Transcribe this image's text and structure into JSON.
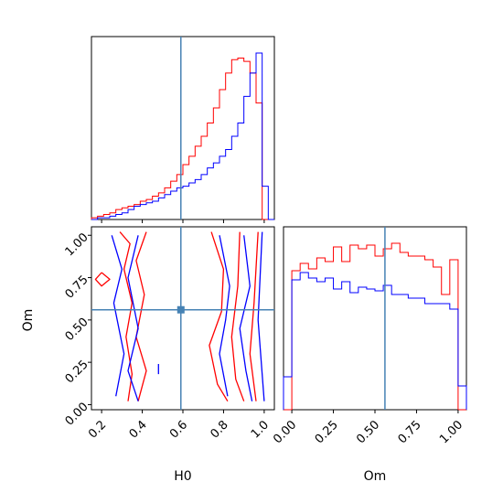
{
  "chart_data": {
    "type": "corner",
    "parameters": [
      "H0",
      "Om"
    ],
    "truth": {
      "H0": 0.59,
      "Om": 0.56,
      "color": "#4682b4"
    },
    "colors": {
      "series_red": "#ff0000",
      "series_blue": "#0000ff",
      "truth": "#4682b4"
    },
    "panels": [
      {
        "name": "H0-marginal",
        "type": "histogram",
        "xlim": [
          0.15,
          1.05
        ],
        "bin_edges": [
          0.15,
          0.18,
          0.21,
          0.24,
          0.27,
          0.3,
          0.33,
          0.36,
          0.39,
          0.42,
          0.45,
          0.48,
          0.51,
          0.54,
          0.57,
          0.6,
          0.63,
          0.66,
          0.69,
          0.72,
          0.75,
          0.78,
          0.81,
          0.84,
          0.87,
          0.9,
          0.93,
          0.96,
          0.99,
          1.02,
          1.05
        ],
        "series": [
          {
            "color": "red",
            "counts": [
              1,
              2,
              3,
              4,
              6,
              7,
              8,
              9,
              11,
              12,
              14,
              16,
              19,
              23,
              27,
              33,
              38,
              44,
              50,
              58,
              67,
              78,
              88,
              96,
              97,
              95,
              88,
              70,
              0,
              0
            ]
          },
          {
            "color": "blue",
            "counts": [
              0,
              1,
              1,
              2,
              3,
              4,
              6,
              8,
              9,
              10,
              11,
              13,
              15,
              17,
              19,
              20,
              22,
              24,
              27,
              31,
              34,
              38,
              42,
              50,
              58,
              74,
              88,
              100,
              20,
              0
            ]
          }
        ]
      },
      {
        "name": "Om-marginal",
        "type": "histogram",
        "xlim": [
          -0.05,
          1.05
        ],
        "xticks": [
          "0.00",
          "0.25",
          "0.50",
          "0.75",
          "1.00"
        ],
        "xlabel": "Om",
        "bin_edges": [
          -0.05,
          0.0,
          0.05,
          0.1,
          0.15,
          0.2,
          0.25,
          0.3,
          0.35,
          0.4,
          0.45,
          0.5,
          0.55,
          0.6,
          0.65,
          0.7,
          0.75,
          0.8,
          0.85,
          0.9,
          0.95,
          1.0,
          1.05
        ],
        "series": [
          {
            "color": "red",
            "counts": [
              0,
              0.76,
              0.8,
              0.77,
              0.83,
              0.81,
              0.89,
              0.81,
              0.9,
              0.88,
              0.9,
              0.84,
              0.88,
              0.91,
              0.86,
              0.84,
              0.84,
              0.82,
              0.78,
              0.63,
              0.82,
              0
            ]
          },
          {
            "color": "blue",
            "counts": [
              0.18,
              0.71,
              0.75,
              0.72,
              0.7,
              0.72,
              0.66,
              0.7,
              0.64,
              0.67,
              0.66,
              0.65,
              0.68,
              0.63,
              0.63,
              0.61,
              0.61,
              0.58,
              0.58,
              0.58,
              0.55,
              0.13
            ]
          }
        ]
      },
      {
        "name": "H0-Om-contour",
        "type": "contour",
        "xlim": [
          0.15,
          1.05
        ],
        "ylim": [
          -0.03,
          1.05
        ],
        "xticks": [
          "0.2",
          "0.4",
          "0.6",
          "0.8",
          "1.0"
        ],
        "yticks": [
          "0.00",
          "0.25",
          "0.50",
          "0.75",
          "1.00"
        ],
        "xlabel": "H0",
        "ylabel": "Om",
        "series": [
          {
            "color": "red",
            "contours": [
              [
                [
                  0.29,
                  1.02
                ],
                [
                  0.34,
                  0.95
                ],
                [
                  0.31,
                  0.8
                ],
                [
                  0.35,
                  0.6
                ],
                [
                  0.32,
                  0.4
                ],
                [
                  0.35,
                  0.18
                ],
                [
                  0.33,
                  0.02
                ]
              ],
              [
                [
                  0.42,
                  1.02
                ],
                [
                  0.37,
                  0.85
                ],
                [
                  0.41,
                  0.65
                ],
                [
                  0.37,
                  0.4
                ],
                [
                  0.42,
                  0.2
                ],
                [
                  0.38,
                  0.02
                ]
              ],
              [
                [
                  0.74,
                  1.02
                ],
                [
                  0.8,
                  0.8
                ],
                [
                  0.79,
                  0.55
                ],
                [
                  0.73,
                  0.35
                ],
                [
                  0.77,
                  0.12
                ],
                [
                  0.82,
                  0.02
                ]
              ],
              [
                [
                  0.88,
                  1.02
                ],
                [
                  0.87,
                  0.7
                ],
                [
                  0.84,
                  0.4
                ],
                [
                  0.86,
                  0.15
                ],
                [
                  0.9,
                  0.02
                ]
              ],
              [
                [
                  0.97,
                  1.02
                ],
                [
                  0.95,
                  0.6
                ],
                [
                  0.93,
                  0.3
                ],
                [
                  0.96,
                  0.02
                ]
              ],
              [
                [
                  0.2,
                  0.78
                ],
                [
                  0.24,
                  0.74
                ],
                [
                  0.2,
                  0.7
                ],
                [
                  0.17,
                  0.74
                ],
                [
                  0.2,
                  0.78
                ]
              ]
            ]
          },
          {
            "color": "blue",
            "contours": [
              [
                [
                  0.25,
                  1.0
                ],
                [
                  0.3,
                  0.8
                ],
                [
                  0.26,
                  0.6
                ],
                [
                  0.31,
                  0.3
                ],
                [
                  0.27,
                  0.05
                ]
              ],
              [
                [
                  0.38,
                  1.0
                ],
                [
                  0.33,
                  0.75
                ],
                [
                  0.38,
                  0.45
                ],
                [
                  0.33,
                  0.2
                ],
                [
                  0.38,
                  0.02
                ]
              ],
              [
                [
                  0.78,
                  1.0
                ],
                [
                  0.83,
                  0.7
                ],
                [
                  0.81,
                  0.5
                ],
                [
                  0.78,
                  0.3
                ],
                [
                  0.82,
                  0.05
                ]
              ],
              [
                [
                  0.9,
                  1.0
                ],
                [
                  0.93,
                  0.7
                ],
                [
                  0.88,
                  0.45
                ],
                [
                  0.91,
                  0.2
                ],
                [
                  0.94,
                  0.02
                ]
              ],
              [
                [
                  0.99,
                  1.02
                ],
                [
                  0.97,
                  0.5
                ],
                [
                  1.0,
                  0.02
                ]
              ],
              [
                [
                  0.48,
                  0.24
                ],
                [
                  0.48,
                  0.18
                ]
              ]
            ]
          }
        ]
      }
    ]
  }
}
